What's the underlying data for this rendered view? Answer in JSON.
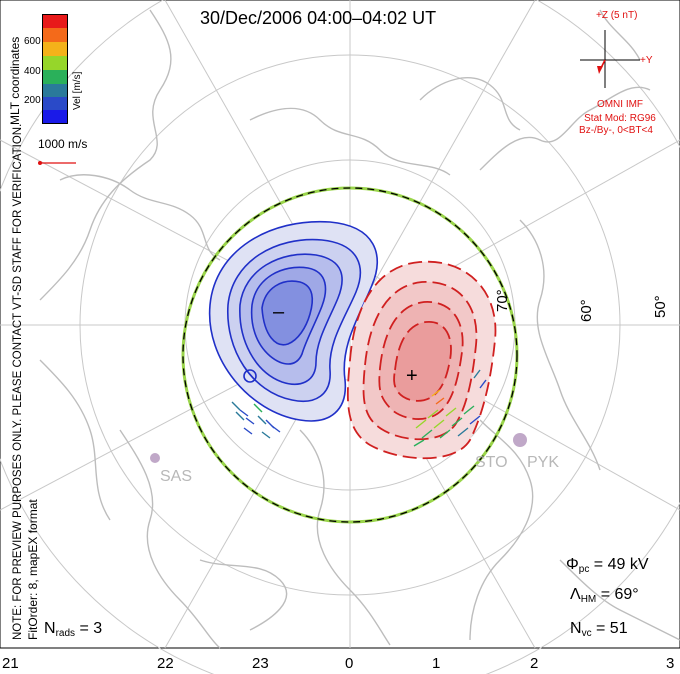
{
  "title": "30/Dec/2006 04:00–04:02 UT",
  "colorbar": {
    "label": "Vel [m/s]",
    "ticks": [
      "600",
      "400",
      "200"
    ],
    "colors": [
      "#e81a1a",
      "#f46a1a",
      "#f4b21a",
      "#96d62a",
      "#2ab05a",
      "#2a7a9a",
      "#2a4ac8",
      "#1a1ae8"
    ]
  },
  "coords_label": "MLT coordinates",
  "vector_scale_label": "1000 m/s",
  "side_note_1": "NOTE: FOR PREVIEW PURPOSES ONLY. PLEASE CONTACT VT-SD STAFF FOR VERIFICATION.",
  "side_note_2": "FitOrder: 8, mapEX format",
  "imf": {
    "scale": "+Z (5 nT)",
    "y_label": "+Y",
    "source": "OMNI IMF",
    "model": "Stat Mod: RG96",
    "bin": "Bz-/By-, 0<BT<4"
  },
  "lat_labels": [
    "70°",
    "60°",
    "50°"
  ],
  "radars": [
    "SAS",
    "STO",
    "PYK"
  ],
  "potential": {
    "neg_mark": "–",
    "pos_mark": "+",
    "neg_color": "#2030c8",
    "pos_color": "#d02020"
  },
  "stats": {
    "phi_symbol": "Φ",
    "phi_sub": "pc",
    "phi_value": "= 49 kV",
    "lambda_symbol": "Λ",
    "lambda_sub": "HM",
    "lambda_value": "= 69°",
    "nvc_symbol": "N",
    "nvc_sub": "vc",
    "nvc_value": "= 51",
    "nrads_symbol": "N",
    "nrads_sub": "rads",
    "nrads_value": "= 3"
  },
  "mlt_ticks": [
    "21",
    "22",
    "23",
    "0",
    "1",
    "2",
    "3"
  ]
}
